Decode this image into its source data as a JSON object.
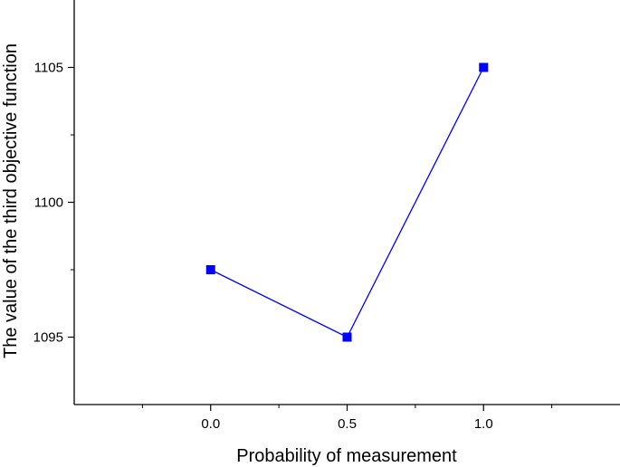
{
  "chart_data": {
    "type": "line",
    "xlabel": "Probability of measurement",
    "ylabel": "The value of the third objective function",
    "xlim": [
      -0.5,
      1.5
    ],
    "ylim": [
      1092.5,
      1107.5
    ],
    "xticks": [
      0.0,
      0.5,
      1.0
    ],
    "xtick_labels": [
      "0.0",
      "0.5",
      "1.0"
    ],
    "yticks": [
      1095,
      1100,
      1105
    ],
    "ytick_labels": [
      "1095",
      "1100",
      "1105"
    ],
    "grid": false,
    "series": [
      {
        "x": [
          0.0,
          0.5,
          1.0
        ],
        "y": [
          1097.5,
          1095.0,
          1105.0
        ],
        "color": "#0000FF",
        "marker": "square"
      }
    ]
  }
}
